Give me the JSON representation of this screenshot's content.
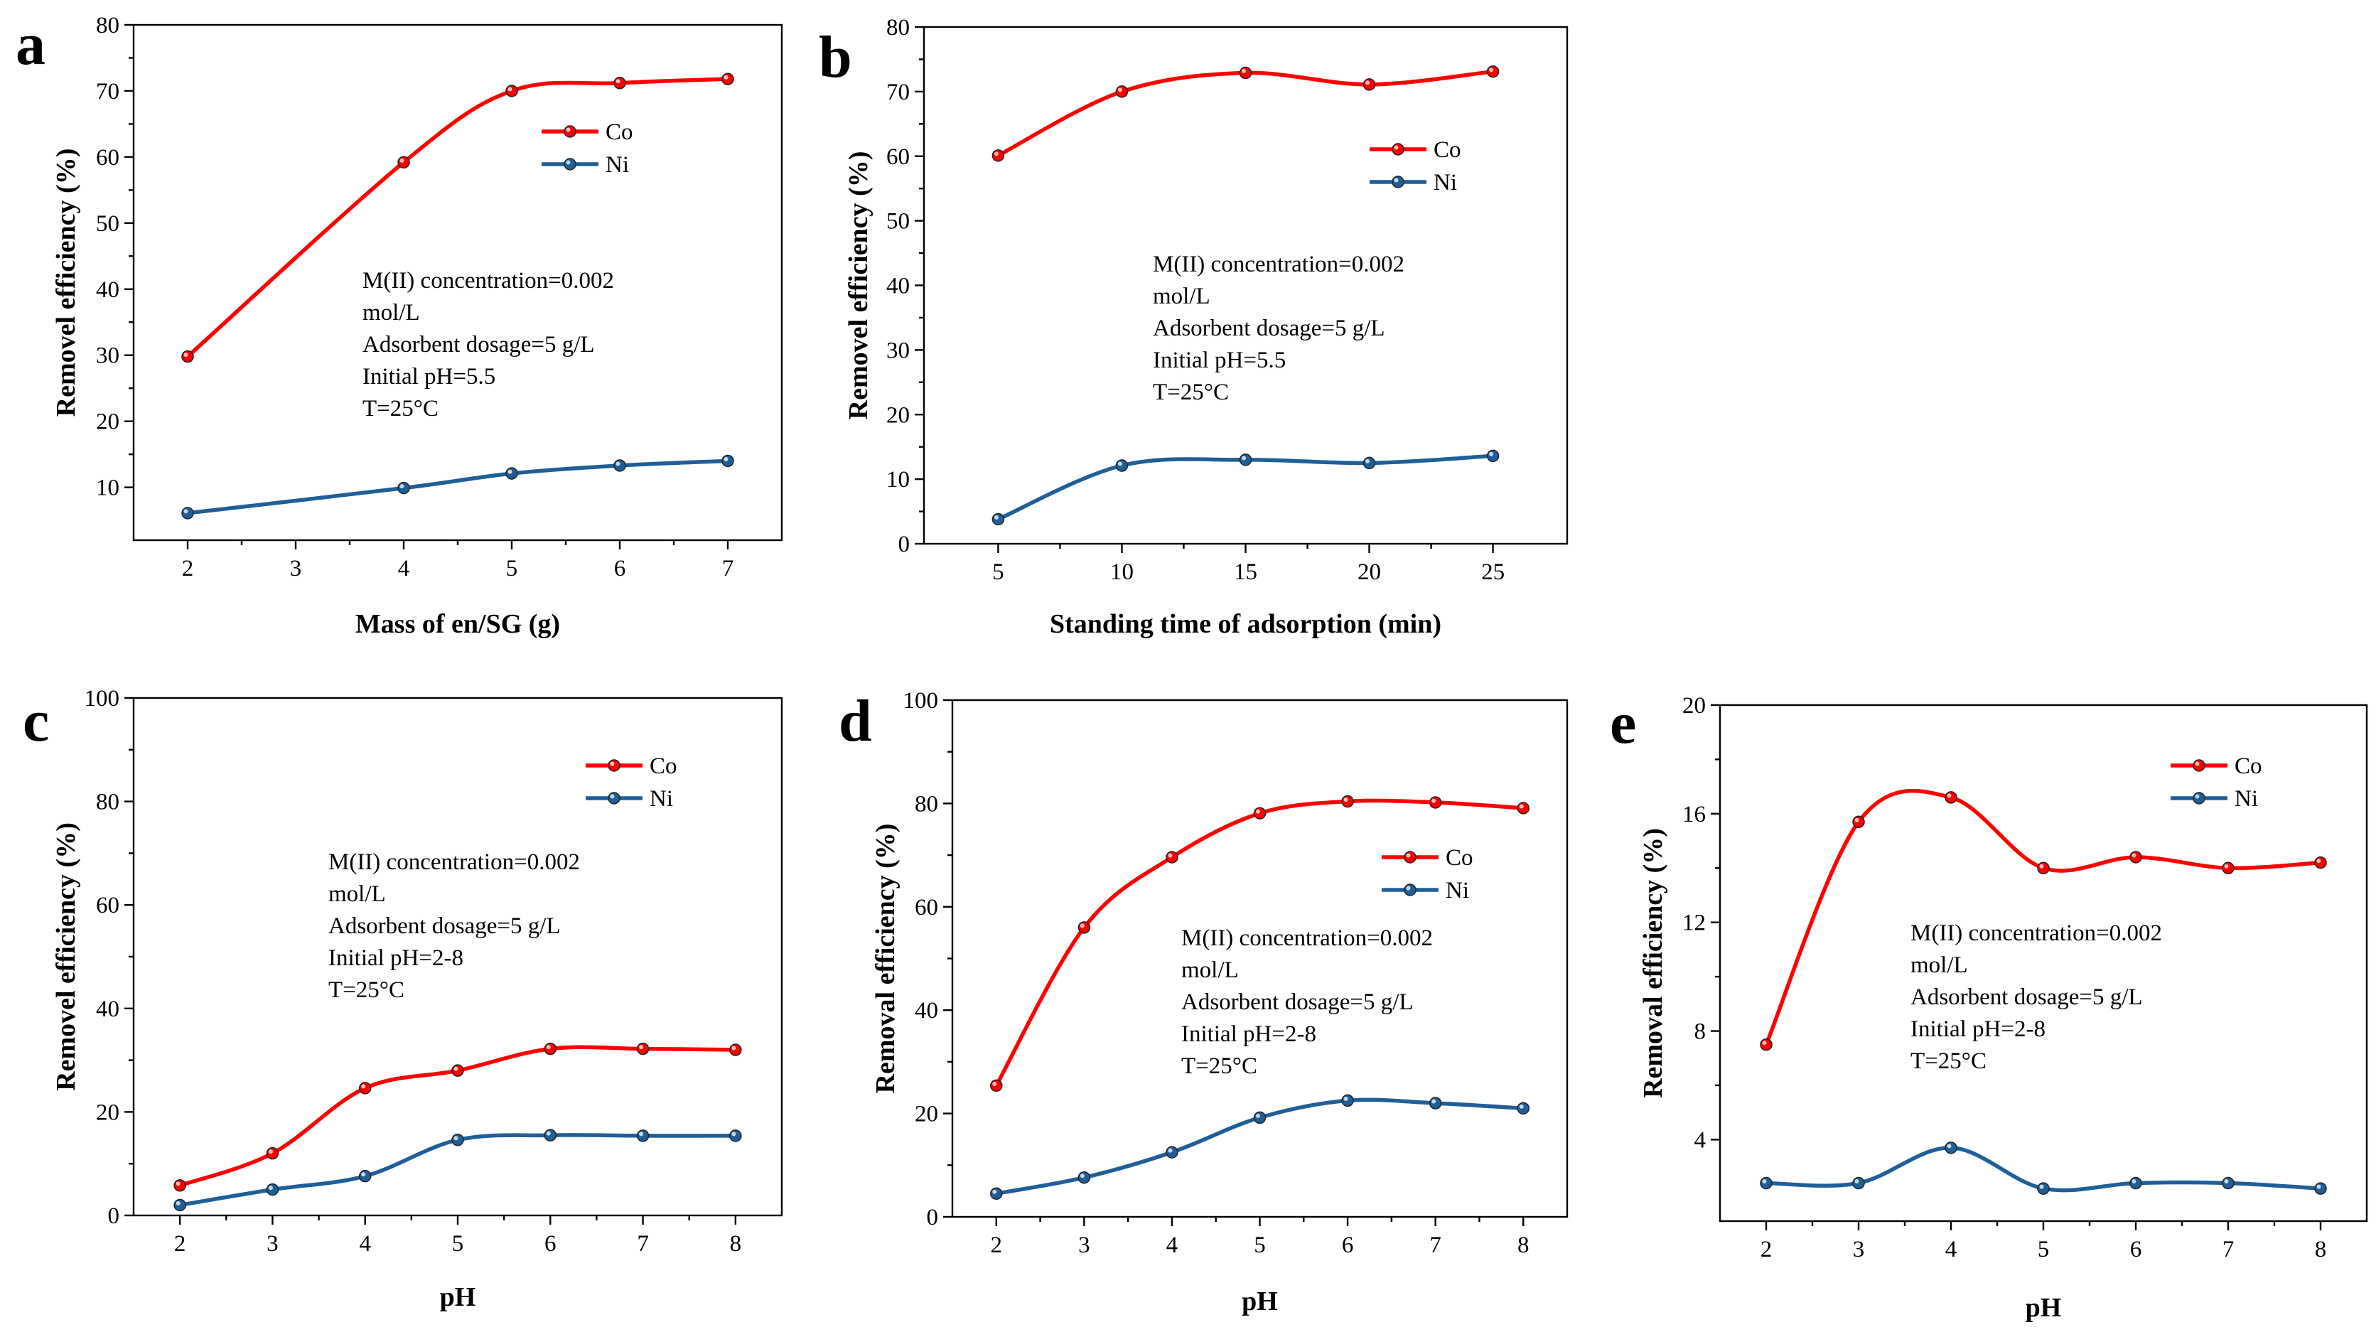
{
  "colors": {
    "Co": "#ff0000",
    "Ni": "#1f5f99"
  },
  "chart_data": [
    {
      "panel": "a",
      "type": "line",
      "xlabel": "Mass of en/SG (g)",
      "ylabel": "Removel efficiency (%)",
      "xlim": [
        1.5,
        7.5
      ],
      "ylim": [
        2,
        80
      ],
      "xticks": [
        2,
        3,
        4,
        5,
        6,
        7
      ],
      "yticks": [
        10,
        20,
        30,
        40,
        50,
        60,
        70,
        80
      ],
      "series": [
        {
          "name": "Co",
          "x": [
            2,
            4,
            5,
            6,
            7
          ],
          "values": [
            29.8,
            59.2,
            70.0,
            71.2,
            71.8
          ]
        },
        {
          "name": "Ni",
          "x": [
            2,
            4,
            5,
            6,
            7
          ],
          "values": [
            6.1,
            9.9,
            12.1,
            13.3,
            14.0
          ]
        }
      ],
      "legend": "upper right",
      "annotation": [
        "M(II) concentration=0.002",
        "mol/L",
        "Adsorbent dosage=5 g/L",
        "Initial pH=5.5",
        "T=25°C"
      ]
    },
    {
      "panel": "b",
      "type": "line",
      "xlabel": "Standing time of adsorption (min)",
      "ylabel": "Removel efficiency (%)",
      "xlim": [
        2,
        28
      ],
      "ylim": [
        0,
        80
      ],
      "xticks": [
        5,
        10,
        15,
        20,
        25
      ],
      "yticks": [
        0,
        10,
        20,
        30,
        40,
        50,
        60,
        70,
        80
      ],
      "series": [
        {
          "name": "Co",
          "x": [
            5,
            10,
            15,
            20,
            25
          ],
          "values": [
            60.1,
            70.0,
            72.9,
            71.1,
            73.1
          ]
        },
        {
          "name": "Ni",
          "x": [
            5,
            10,
            15,
            20,
            25
          ],
          "values": [
            3.8,
            12.1,
            13.0,
            12.5,
            13.6
          ]
        }
      ],
      "legend": "upper right",
      "annotation": [
        "M(II) concentration=0.002",
        "mol/L",
        "Adsorbent dosage=5 g/L",
        "Initial pH=5.5",
        "T=25°C"
      ]
    },
    {
      "panel": "c",
      "type": "line",
      "xlabel": "pH",
      "ylabel": "Removel efficiency (%)",
      "xlim": [
        1.5,
        8.5
      ],
      "ylim": [
        0,
        100
      ],
      "xticks": [
        2,
        3,
        4,
        5,
        6,
        7,
        8
      ],
      "yticks": [
        0,
        20,
        40,
        60,
        80,
        100
      ],
      "series": [
        {
          "name": "Co",
          "x": [
            2,
            3,
            4,
            5,
            6,
            7,
            8
          ],
          "values": [
            5.8,
            12.0,
            24.6,
            28.0,
            32.2,
            32.2,
            32.0
          ]
        },
        {
          "name": "Ni",
          "x": [
            2,
            3,
            4,
            5,
            6,
            7,
            8
          ],
          "values": [
            2.0,
            5.0,
            7.6,
            14.6,
            15.5,
            15.4,
            15.4
          ]
        }
      ],
      "legend": "upper right",
      "annotation": [
        "M(II) concentration=0.002",
        "mol/L",
        "Adsorbent dosage=5 g/L",
        "Initial pH=2-8",
        "T=25°C"
      ]
    },
    {
      "panel": "d",
      "type": "line",
      "xlabel": "pH",
      "ylabel": "Removal efficiency (%)",
      "xlim": [
        1.5,
        8.5
      ],
      "ylim": [
        0,
        100
      ],
      "xticks": [
        2,
        3,
        4,
        5,
        6,
        7,
        8
      ],
      "yticks": [
        0,
        20,
        40,
        60,
        80,
        100
      ],
      "series": [
        {
          "name": "Co",
          "x": [
            2,
            3,
            4,
            5,
            6,
            7,
            8
          ],
          "values": [
            25.4,
            56.0,
            69.6,
            78.1,
            80.4,
            80.2,
            79.1
          ]
        },
        {
          "name": "Ni",
          "x": [
            2,
            3,
            4,
            5,
            6,
            7,
            8
          ],
          "values": [
            4.5,
            7.6,
            12.5,
            19.2,
            22.5,
            22.0,
            21.0
          ]
        }
      ],
      "legend": "middle right",
      "annotation": [
        "M(II) concentration=0.002",
        "mol/L",
        "Adsorbent dosage=5 g/L",
        "Initial pH=2-8",
        "T=25°C"
      ]
    },
    {
      "panel": "e",
      "type": "line",
      "xlabel": "pH",
      "ylabel": "Removal efficiency (%)",
      "xlim": [
        1.5,
        8.5
      ],
      "ylim": [
        1,
        20
      ],
      "xticks": [
        2,
        3,
        4,
        5,
        6,
        7,
        8
      ],
      "yticks": [
        4,
        8,
        12,
        16,
        20
      ],
      "series": [
        {
          "name": "Co",
          "x": [
            2,
            3,
            4,
            5,
            6,
            7,
            8
          ],
          "values": [
            7.5,
            15.7,
            16.6,
            14.0,
            14.4,
            14.0,
            14.2
          ]
        },
        {
          "name": "Ni",
          "x": [
            2,
            3,
            4,
            5,
            6,
            7,
            8
          ],
          "values": [
            2.4,
            2.4,
            3.7,
            2.2,
            2.4,
            2.4,
            2.2
          ]
        }
      ],
      "legend": "upper right",
      "annotation": [
        "M(II) concentration=0.002",
        "mol/L",
        "Adsorbent dosage=5 g/L",
        "Initial pH=2-8",
        "T=25°C"
      ]
    }
  ]
}
